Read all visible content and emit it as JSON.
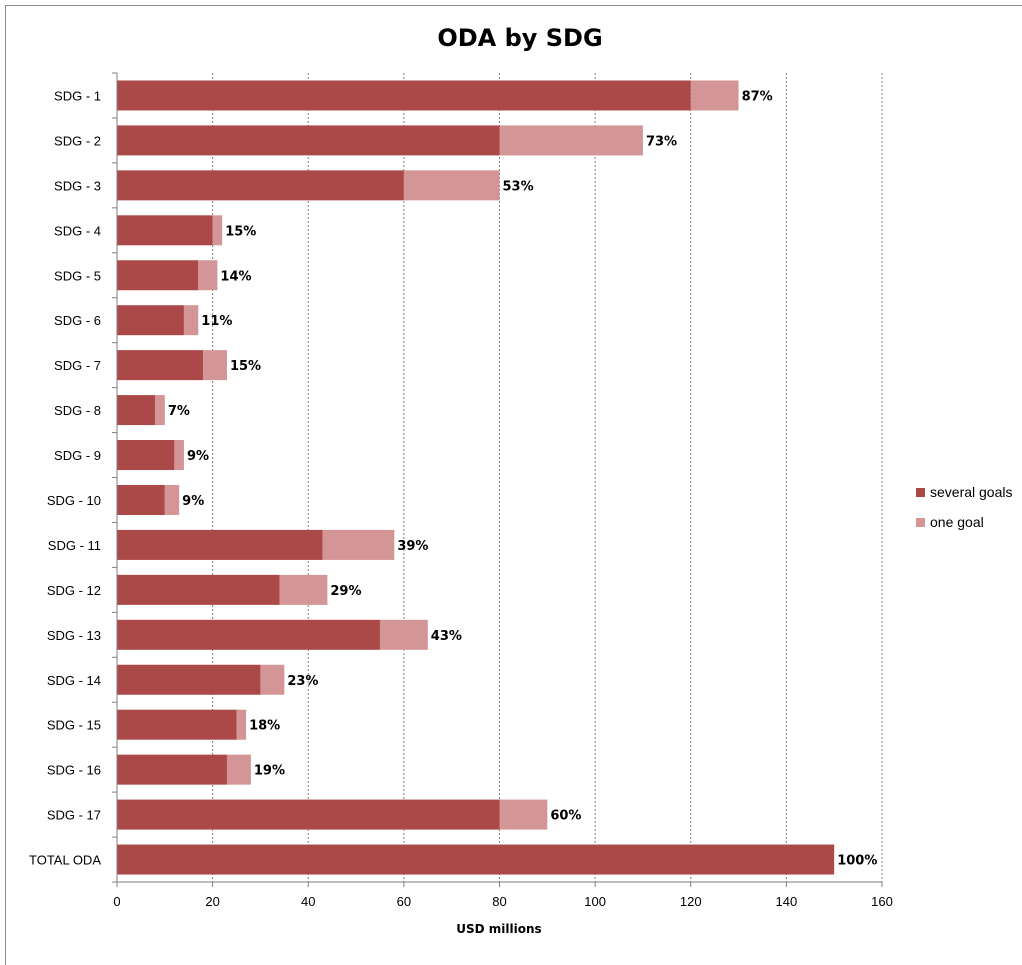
{
  "chart_data": {
    "type": "bar",
    "orientation": "horizontal",
    "stacked": true,
    "title": "ODA by SDG",
    "xlabel": "USD millions",
    "ylabel": "",
    "xlim": [
      0,
      160
    ],
    "xticks": [
      0,
      20,
      40,
      60,
      80,
      100,
      120,
      140,
      160
    ],
    "grid": "vertical dotted",
    "legend_position": "right",
    "categories": [
      "SDG - 1",
      "SDG - 2",
      "SDG - 3",
      "SDG - 4",
      "SDG - 5",
      "SDG - 6",
      "SDG - 7",
      "SDG - 8",
      "SDG - 9",
      "SDG - 10",
      "SDG - 11",
      "SDG - 12",
      "SDG - 13",
      "SDG - 14",
      "SDG - 15",
      "SDG - 16",
      "SDG - 17",
      "TOTAL ODA"
    ],
    "series": [
      {
        "name": "several goals",
        "color": "#ab4848",
        "values": [
          120,
          80,
          60,
          20,
          17,
          14,
          18,
          8,
          12,
          10,
          43,
          34,
          55,
          30,
          25,
          23,
          80,
          150
        ]
      },
      {
        "name": "one goal",
        "color": "#d39595",
        "values": [
          10,
          30,
          20,
          2,
          4,
          3,
          5,
          2,
          2,
          3,
          15,
          10,
          10,
          5,
          2,
          5,
          10,
          0
        ]
      }
    ],
    "data_labels": [
      "87%",
      "73%",
      "53%",
      "15%",
      "14%",
      "11%",
      "15%",
      "7%",
      "9%",
      "9%",
      "39%",
      "29%",
      "43%",
      "23%",
      "18%",
      "19%",
      "60%",
      "100%"
    ]
  }
}
